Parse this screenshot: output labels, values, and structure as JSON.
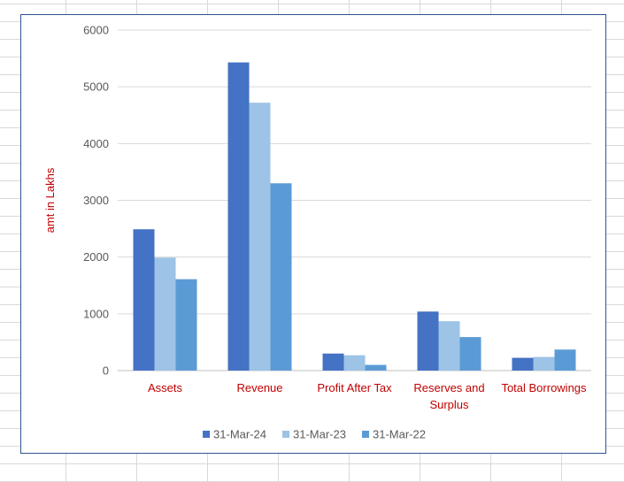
{
  "chart_data": {
    "type": "bar",
    "title": "",
    "xlabel": "",
    "ylabel": "amt in Lakhs",
    "ylim": [
      0,
      6000
    ],
    "yticks": [
      0,
      1000,
      2000,
      3000,
      4000,
      5000,
      6000
    ],
    "ytick_labels": [
      "0",
      "1000",
      "2000",
      "3000",
      "4000",
      "5000",
      "6000"
    ],
    "grid": true,
    "legend_position": "bottom",
    "categories": [
      "Assets",
      "Revenue",
      "Profit After Tax",
      "Reserves and Surplus",
      "Total Borrowings"
    ],
    "series": [
      {
        "name": "31-Mar-24",
        "color": "#4472c4",
        "values": [
          2490,
          5430,
          300,
          1040,
          225
        ]
      },
      {
        "name": "31-Mar-23",
        "color": "#9dc3e6",
        "values": [
          1990,
          4720,
          270,
          870,
          240
        ]
      },
      {
        "name": "31-Mar-22",
        "color": "#5b9bd5",
        "values": [
          1610,
          3300,
          100,
          590,
          370
        ]
      }
    ],
    "label_color": "#c00000"
  }
}
